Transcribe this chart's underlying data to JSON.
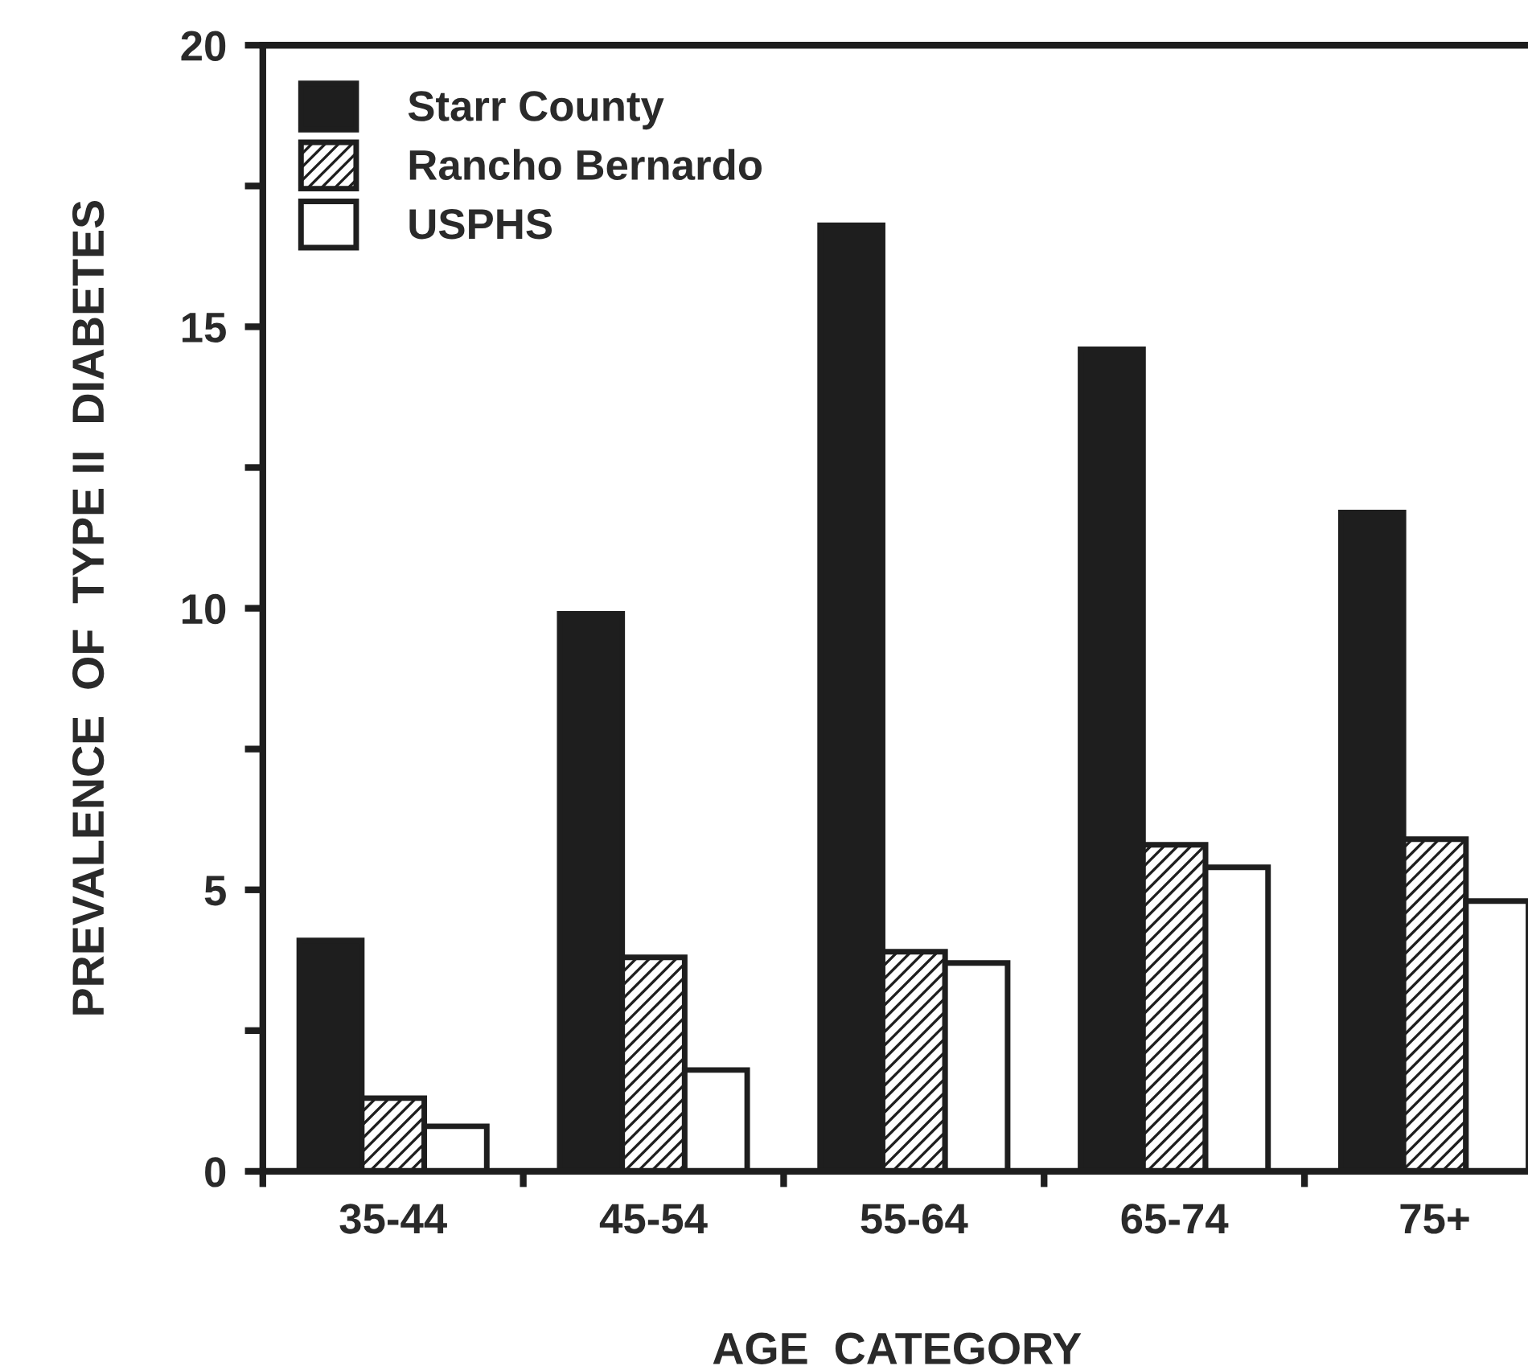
{
  "chart_data": {
    "type": "bar",
    "xlabel": "AGE  CATEGORY",
    "ylabel": "PREVALENCE  OF  TYPE II  DIABETES",
    "categories": [
      "35-44",
      "45-54",
      "55-64",
      "65-74",
      "75+"
    ],
    "series": [
      {
        "name": "Starr County",
        "color": "#1e1e1e",
        "values": [
          4.1,
          9.9,
          16.8,
          14.6,
          11.7
        ]
      },
      {
        "name": "Rancho Bernardo",
        "color": "#ffffff",
        "values": [
          1.3,
          3.8,
          3.9,
          5.8,
          5.9
        ]
      },
      {
        "name": "USPHS",
        "color": "#ffffff",
        "values": [
          0.8,
          1.8,
          3.7,
          5.4,
          4.8
        ]
      }
    ],
    "ylim": [
      0,
      20
    ],
    "yticks": [
      0,
      {
        "value": 2.5,
        "label": null
      },
      5,
      {
        "value": 7.5,
        "label": null
      },
      10,
      {
        "value": 12.5,
        "label": null
      },
      15,
      {
        "value": 17.5,
        "label": null
      },
      20
    ],
    "legend": "top left",
    "grid": false
  }
}
